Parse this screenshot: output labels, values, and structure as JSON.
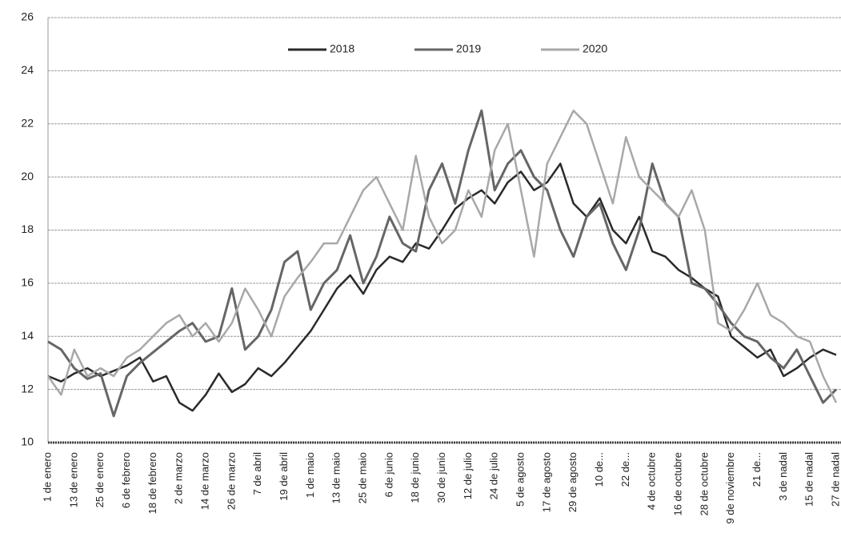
{
  "chart_data": {
    "type": "line",
    "categories": [
      "1 de enero",
      null,
      "13 de enero",
      null,
      "25 de enero",
      null,
      "6 de febrero",
      null,
      "18 de febrero",
      null,
      "2 de marzo",
      null,
      "14 de marzo",
      null,
      "26 de marzo",
      null,
      "7 de abril",
      null,
      "19 de abril",
      null,
      "1 de maio",
      null,
      "13 de maio",
      null,
      "25 de maio",
      null,
      "6 de junio",
      null,
      "18 de junio",
      null,
      "30 de junio",
      null,
      "12 de julio",
      null,
      "24 de julio",
      null,
      "5 de agosto",
      null,
      "17 de agosto",
      null,
      "29 de agosto",
      null,
      "10 de...",
      null,
      "22 de...",
      null,
      "4 de octubre",
      null,
      "16 de octubre",
      null,
      "28 de octubre",
      null,
      "9 de noviembre",
      null,
      "21 de...",
      null,
      "3 de nadal",
      null,
      "15 de nadal",
      null,
      "27 de nadal"
    ],
    "series": [
      {
        "name": "2018",
        "color": "#2a2a2a",
        "values": [
          12.5,
          12.3,
          12.6,
          12.8,
          12.5,
          12.7,
          12.9,
          13.2,
          12.3,
          12.5,
          11.5,
          11.2,
          11.8,
          12.6,
          11.9,
          12.2,
          12.8,
          12.5,
          13.0,
          13.6,
          14.2,
          15.0,
          15.8,
          16.3,
          15.6,
          16.5,
          17.0,
          16.8,
          17.5,
          17.3,
          18.0,
          18.8,
          19.2,
          19.5,
          19.0,
          19.8,
          20.2,
          19.5,
          19.8,
          20.5,
          19.0,
          18.5,
          19.2,
          18.0,
          17.5,
          18.5,
          17.2,
          17.0,
          16.5,
          16.2,
          15.8,
          15.5,
          14.0,
          13.6,
          13.2,
          13.5,
          12.5,
          12.8,
          13.2,
          13.5,
          13.3
        ]
      },
      {
        "name": "2019",
        "color": "#666666",
        "values": [
          13.8,
          13.5,
          12.8,
          12.4,
          12.6,
          11.0,
          12.5,
          13.0,
          13.4,
          13.8,
          14.2,
          14.5,
          13.8,
          14.0,
          15.8,
          13.5,
          14.0,
          15.0,
          16.8,
          17.2,
          15.0,
          16.0,
          16.5,
          17.8,
          16.0,
          17.0,
          18.5,
          17.5,
          17.2,
          19.5,
          20.5,
          19.0,
          21.0,
          22.5,
          19.5,
          20.5,
          21.0,
          20.0,
          19.5,
          18.0,
          17.0,
          18.5,
          19.0,
          17.5,
          16.5,
          18.0,
          20.5,
          19.0,
          18.5,
          16.0,
          15.8,
          15.2,
          14.5,
          14.0,
          13.8,
          13.2,
          12.8,
          13.5,
          12.5,
          11.5,
          12.0
        ]
      },
      {
        "name": "2020",
        "color": "#a8a8a8",
        "values": [
          12.5,
          11.8,
          13.5,
          12.5,
          12.8,
          12.5,
          13.2,
          13.5,
          14.0,
          14.5,
          14.8,
          14.0,
          14.5,
          13.8,
          14.5,
          15.8,
          15.0,
          14.0,
          15.5,
          16.2,
          16.8,
          17.5,
          17.5,
          18.5,
          19.5,
          20.0,
          19.0,
          18.0,
          20.8,
          18.5,
          17.5,
          18.0,
          19.5,
          18.5,
          21.0,
          22.0,
          19.5,
          17.0,
          20.5,
          21.5,
          22.5,
          22.0,
          20.5,
          19.0,
          21.5,
          20.0,
          19.5,
          19.0,
          18.5,
          19.5,
          18.0,
          14.5,
          14.2,
          15.0,
          16.0,
          14.8,
          14.5,
          14.0,
          13.8,
          12.5,
          11.5
        ]
      }
    ],
    "ylim": [
      10,
      26
    ],
    "yticks": [
      10,
      12,
      14,
      16,
      18,
      20,
      22,
      24,
      26
    ],
    "grid": true,
    "legend": "top"
  }
}
